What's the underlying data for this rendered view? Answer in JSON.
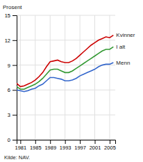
{
  "chart_data": {
    "type": "line",
    "y_label": "Prosent",
    "x": [
      1980,
      1981,
      1982,
      1983,
      1984,
      1985,
      1986,
      1987,
      1988,
      1989,
      1990,
      1991,
      1992,
      1993,
      1994,
      1995,
      1996,
      1997,
      1998,
      1999,
      2000,
      2001,
      2002,
      2003,
      2004,
      2005,
      2006
    ],
    "series": [
      {
        "name": "Kvinner",
        "color": "#cc0000",
        "values": [
          6.8,
          6.4,
          6.5,
          6.7,
          6.9,
          7.2,
          7.6,
          8.1,
          8.8,
          9.4,
          9.5,
          9.6,
          9.4,
          9.3,
          9.3,
          9.5,
          9.8,
          10.2,
          10.6,
          11.0,
          11.4,
          11.7,
          12.0,
          12.2,
          12.4,
          12.3,
          12.6
        ]
      },
      {
        "name": "I alt",
        "color": "#339933",
        "values": [
          6.4,
          6.1,
          6.1,
          6.3,
          6.5,
          6.7,
          7.0,
          7.4,
          7.9,
          8.4,
          8.5,
          8.5,
          8.3,
          8.1,
          8.1,
          8.3,
          8.6,
          8.9,
          9.2,
          9.5,
          9.8,
          10.1,
          10.4,
          10.7,
          10.9,
          10.9,
          11.2
        ]
      },
      {
        "name": "Menn",
        "color": "#3366cc",
        "values": [
          6.0,
          5.9,
          5.8,
          5.9,
          6.1,
          6.2,
          6.5,
          6.7,
          7.1,
          7.5,
          7.5,
          7.4,
          7.3,
          7.1,
          7.1,
          7.2,
          7.4,
          7.7,
          7.9,
          8.1,
          8.3,
          8.5,
          8.8,
          9.0,
          9.1,
          9.1,
          9.3
        ]
      }
    ],
    "xlim": [
      1980,
      2006.5
    ],
    "xticks": [
      1981,
      1985,
      1989,
      1993,
      1997,
      2001,
      2005
    ],
    "ylim": [
      0,
      15
    ],
    "yticks": [
      0,
      3,
      6,
      9,
      12,
      15
    ],
    "grid": true,
    "annotations": [
      "Kilde: NAV."
    ]
  }
}
